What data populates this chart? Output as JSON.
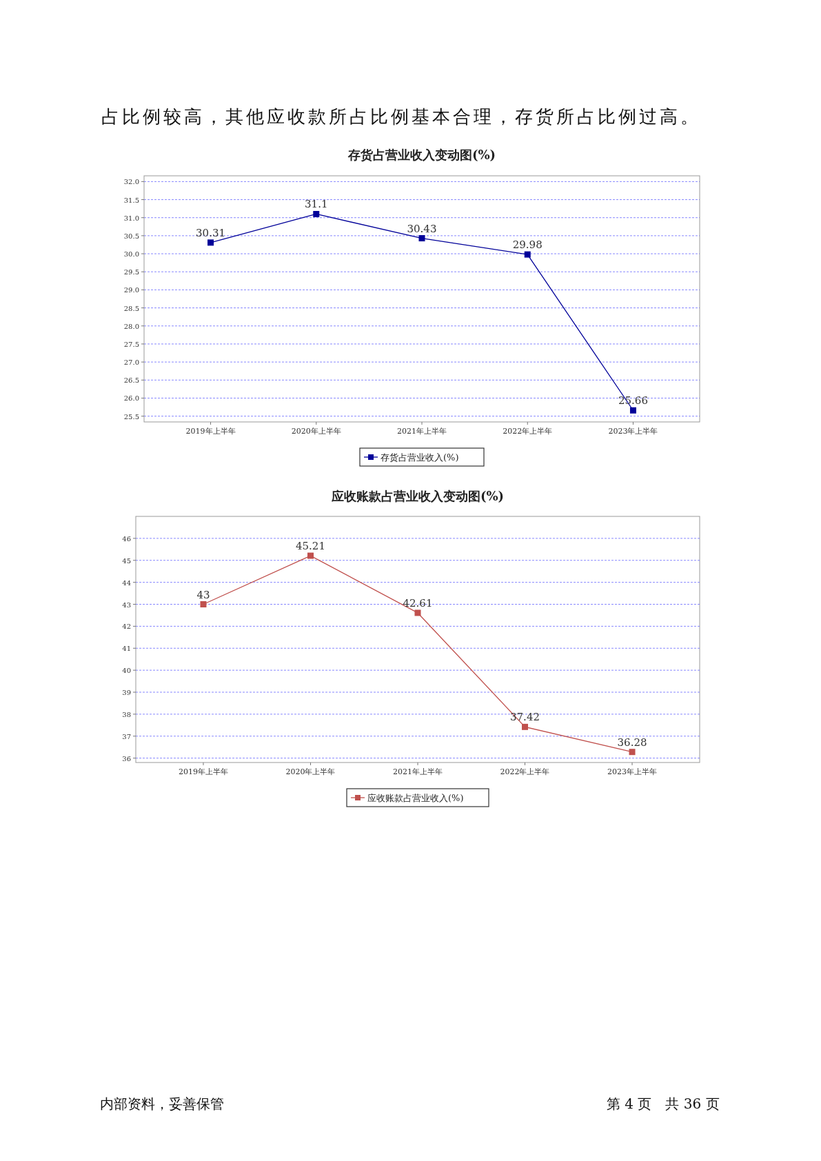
{
  "chart_data": [
    {
      "type": "line",
      "title": "存货占营业收入变动图(%)",
      "annotations": [
        "占比例较高，其他应收款所占比例基本合理，存货所占比例过高。"
      ],
      "categories": [
        "2019年上半年",
        "2020年上半年",
        "2021年上半年",
        "2022年上半年",
        "2023年上半年"
      ],
      "series": [
        {
          "name": "存货占营业收入(%)",
          "color": "#000099",
          "values": [
            30.31,
            31.1,
            30.43,
            29.98,
            25.66
          ]
        }
      ],
      "ylim": [
        25.34,
        32.16
      ],
      "yticks": [
        {
          "value": 25.5,
          "label": "25.5"
        },
        {
          "value": 26,
          "label": "26.0"
        },
        {
          "value": 26.5,
          "label": "26.5"
        },
        {
          "value": 27,
          "label": "27.0"
        },
        {
          "value": 27.5,
          "label": "27.5"
        },
        {
          "value": 28,
          "label": "28.0"
        },
        {
          "value": 28.5,
          "label": "28.5"
        },
        {
          "value": 29,
          "label": "29.0"
        },
        {
          "value": 29.5,
          "label": "29.5"
        },
        {
          "value": 30,
          "label": "30.0"
        },
        {
          "value": 30.5,
          "label": "30.5"
        },
        {
          "value": 31,
          "label": "31.0"
        },
        {
          "value": 31.5,
          "label": "31.5"
        },
        {
          "value": 32,
          "label": "32.0"
        }
      ],
      "grid": "y",
      "legend": "bottom",
      "marker": "square",
      "data_labels": true
    },
    {
      "type": "line",
      "title": "应收账款占营业收入变动图(%)",
      "annotations": [
        "内部资料，妥善保管",
        "第 4 页　共 36 页"
      ],
      "categories": [
        "2019年上半年",
        "2020年上半年",
        "2021年上半年",
        "2022年上半年",
        "2023年上半年"
      ],
      "series": [
        {
          "name": "应收账款占营业收入(%)",
          "color": "#c0504d",
          "values": [
            43,
            45.21,
            42.61,
            37.42,
            36.28
          ]
        }
      ],
      "ylim": [
        35.8,
        47
      ],
      "yticks": [
        36,
        37,
        38,
        39,
        40,
        41,
        42,
        43,
        44,
        45,
        46
      ],
      "grid": "y",
      "legend": "bottom",
      "marker": "square",
      "data_labels": true
    }
  ]
}
